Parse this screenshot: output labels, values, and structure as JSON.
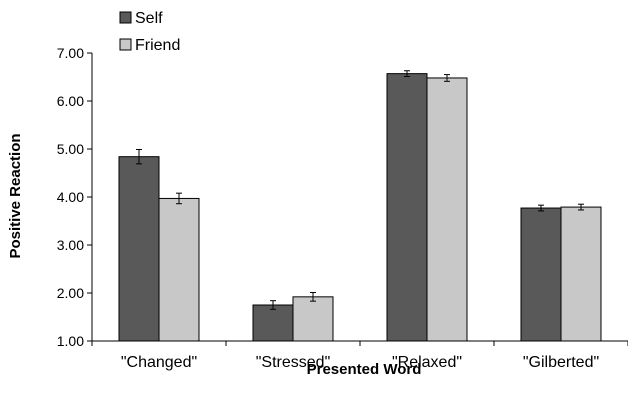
{
  "chart_data": {
    "type": "bar",
    "title": "",
    "xlabel": "Presented Word",
    "ylabel": "Positive Reaction",
    "categories": [
      "\"Changed\"",
      "\"Stressed\"",
      "\"Relaxed\"",
      "\"Gilberted\""
    ],
    "series": [
      {
        "name": "Self",
        "color": "#595959",
        "values": [
          4.84,
          1.75,
          6.57,
          3.77
        ],
        "errors": [
          0.15,
          0.09,
          0.06,
          0.06
        ]
      },
      {
        "name": "Friend",
        "color": "#c8c8c8",
        "values": [
          3.97,
          1.92,
          6.48,
          3.79
        ],
        "errors": [
          0.11,
          0.09,
          0.07,
          0.06
        ]
      }
    ],
    "ylim": [
      1.0,
      7.0
    ],
    "yticks": [
      "1.00",
      "2.00",
      "3.00",
      "4.00",
      "5.00",
      "6.00",
      "7.00"
    ],
    "grid": false,
    "legend_position": "top-left"
  }
}
